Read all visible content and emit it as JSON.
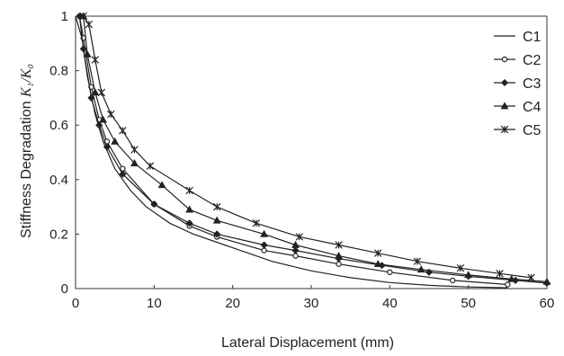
{
  "chart_data": {
    "type": "line",
    "xlabel": "Lateral Displacement (mm)",
    "ylabel_prefix": "Stiffness Degradation ",
    "ylabel_math": "K₁/K₀",
    "xlim": [
      0,
      60
    ],
    "ylim": [
      0,
      1
    ],
    "x_ticks": [
      0,
      10,
      20,
      30,
      40,
      50,
      60
    ],
    "x_tick_labels": [
      "0",
      "10",
      "20",
      "30",
      "40",
      "50",
      "60"
    ],
    "y_ticks": [
      0,
      0.2,
      0.4,
      0.6,
      0.8,
      1
    ],
    "y_tick_labels": [
      "0",
      "0.2",
      "0.4",
      "0.6",
      "0.8",
      "1"
    ],
    "grid": false,
    "legend_position": "top-right",
    "series": [
      {
        "name": "C1",
        "marker": "none",
        "x": [
          0,
          0.8,
          1.5,
          2.5,
          3.5,
          5,
          7,
          9,
          12,
          15,
          20,
          25,
          30,
          35,
          40,
          45,
          50,
          55
        ],
        "y": [
          1.0,
          0.92,
          0.78,
          0.64,
          0.54,
          0.44,
          0.36,
          0.3,
          0.24,
          0.2,
          0.15,
          0.1,
          0.065,
          0.04,
          0.022,
          0.012,
          0.006,
          0.003
        ]
      },
      {
        "name": "C2",
        "marker": "circle",
        "x": [
          0.5,
          1,
          2,
          3,
          4,
          6,
          10,
          14.5,
          18,
          24,
          28,
          33.5,
          40,
          48,
          55
        ],
        "y": [
          1.0,
          0.92,
          0.74,
          0.62,
          0.54,
          0.44,
          0.31,
          0.23,
          0.19,
          0.14,
          0.12,
          0.09,
          0.06,
          0.03,
          0.015
        ]
      },
      {
        "name": "C3",
        "marker": "diamond",
        "x": [
          0.5,
          1,
          2,
          3,
          4,
          6,
          10,
          14.5,
          18,
          24,
          28,
          33.5,
          39,
          45,
          50,
          56,
          60
        ],
        "y": [
          1.0,
          0.88,
          0.7,
          0.6,
          0.52,
          0.42,
          0.31,
          0.24,
          0.2,
          0.16,
          0.14,
          0.11,
          0.085,
          0.06,
          0.045,
          0.03,
          0.02
        ]
      },
      {
        "name": "C4",
        "marker": "triangle",
        "x": [
          1,
          1.5,
          2.5,
          3.5,
          5,
          7.5,
          11,
          14.5,
          18,
          24,
          28,
          33.5,
          38.5,
          44,
          50,
          55.5,
          60
        ],
        "y": [
          1.0,
          0.86,
          0.72,
          0.62,
          0.54,
          0.46,
          0.38,
          0.29,
          0.25,
          0.2,
          0.16,
          0.12,
          0.09,
          0.07,
          0.05,
          0.035,
          0.025
        ]
      },
      {
        "name": "C5",
        "marker": "x",
        "x": [
          1,
          1.7,
          2.5,
          3.3,
          4.5,
          6,
          7.5,
          9.5,
          14.5,
          18,
          23,
          28.5,
          33.5,
          38.5,
          43.5,
          49,
          54,
          58
        ],
        "y": [
          1.0,
          0.97,
          0.84,
          0.72,
          0.64,
          0.58,
          0.51,
          0.45,
          0.36,
          0.3,
          0.24,
          0.19,
          0.16,
          0.13,
          0.1,
          0.075,
          0.055,
          0.04
        ]
      }
    ]
  }
}
